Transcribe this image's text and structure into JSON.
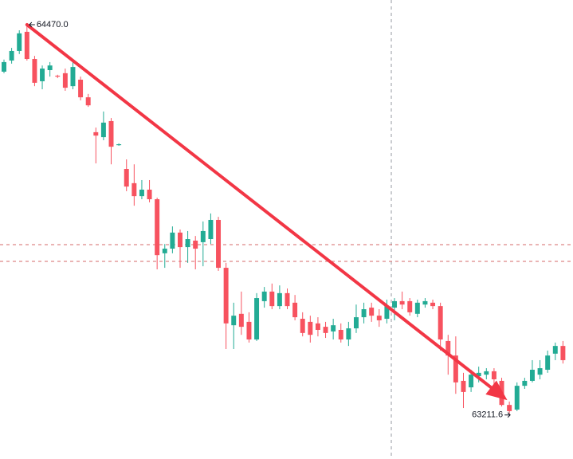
{
  "chart_data": {
    "type": "candlestick",
    "open": [
      64318,
      64354,
      64385,
      64447,
      64359,
      64287,
      64323,
      64305,
      64313,
      64271,
      64292,
      64235,
      64122,
      64106,
      64158,
      64080,
      64003,
      63957,
      63915,
      63936,
      63905,
      63730,
      63745,
      63797,
      63750,
      63771,
      63766,
      63776,
      63838,
      63683,
      63497,
      63534,
      63508,
      63451,
      63575,
      63606,
      63559,
      63601,
      63570,
      63518,
      63508,
      63503,
      63492,
      63477,
      63482,
      63451,
      63487,
      63523,
      63554,
      63528,
      63518,
      63554,
      63575,
      63575,
      63534,
      63564,
      63570,
      63559,
      63446,
      63399,
      63317,
      63296,
      63332,
      63337,
      63348,
      63317,
      63239,
      63224,
      63301,
      63317,
      63337,
      63353,
      63405,
      63430
    ],
    "high": [
      64357,
      64395,
      64452,
      64470.0,
      64369,
      64338,
      64349,
      64308,
      64328,
      64349,
      64302,
      64246,
      64137,
      64189,
      64168,
      64086,
      64034,
      64018,
      63967,
      63967,
      63910,
      63760,
      63817,
      63807,
      63802,
      63786,
      63833,
      63859,
      63848,
      63699,
      63570,
      63606,
      63539,
      63601,
      63621,
      63632,
      63626,
      63616,
      63595,
      63539,
      63528,
      63523,
      63508,
      63518,
      63503,
      63508,
      63564,
      63570,
      63570,
      63549,
      63580,
      63585,
      63606,
      63585,
      63580,
      63585,
      63580,
      63570,
      63466,
      63461,
      63343,
      63353,
      63363,
      63358,
      63358,
      63327,
      63250,
      63312,
      63327,
      63384,
      63384,
      63415,
      63441,
      63446
    ],
    "low": [
      64313,
      64344,
      64375,
      64354,
      64271,
      64261,
      64302,
      64297,
      64256,
      64261,
      64225,
      64204,
      64021,
      64096,
      64018,
      64078,
      63931,
      63884,
      63905,
      63895,
      63678,
      63683,
      63730,
      63683,
      63699,
      63678,
      63688,
      63760,
      63673,
      63420,
      63420,
      63466,
      63441,
      63446,
      63554,
      63549,
      63549,
      63549,
      63513,
      63461,
      63441,
      63461,
      63456,
      63451,
      63441,
      63430,
      63472,
      63503,
      63508,
      63492,
      63503,
      63513,
      63549,
      63528,
      63523,
      63554,
      63549,
      63415,
      63337,
      63275,
      63229,
      63281,
      63312,
      63322,
      63306,
      63234,
      63211.6,
      63219,
      63291,
      63312,
      63322,
      63343,
      63384,
      63373
    ],
    "close": [
      64349,
      64385,
      64442,
      64359,
      64282,
      64328,
      64338,
      64302,
      64266,
      64333,
      64235,
      64209,
      64111,
      64153,
      64075,
      64083,
      63946,
      63915,
      63936,
      63905,
      63724,
      63745,
      63797,
      63750,
      63776,
      63745,
      63802,
      63838,
      63683,
      63503,
      63528,
      63492,
      63451,
      63585,
      63606,
      63559,
      63601,
      63559,
      63523,
      63472,
      63466,
      63482,
      63472,
      63497,
      63451,
      63487,
      63523,
      63549,
      63528,
      63513,
      63559,
      63575,
      63564,
      63539,
      63570,
      63575,
      63559,
      63451,
      63399,
      63312,
      63281,
      63337,
      63343,
      63348,
      63322,
      63239,
      63219,
      63301,
      63317,
      63353,
      63358,
      63399,
      63430,
      63384
    ],
    "up_color": "#22ab94",
    "down_color": "#f7525f",
    "ylim": [
      63064,
      64550
    ],
    "high_label": "64470.0",
    "low_label": "63211.6"
  }
}
